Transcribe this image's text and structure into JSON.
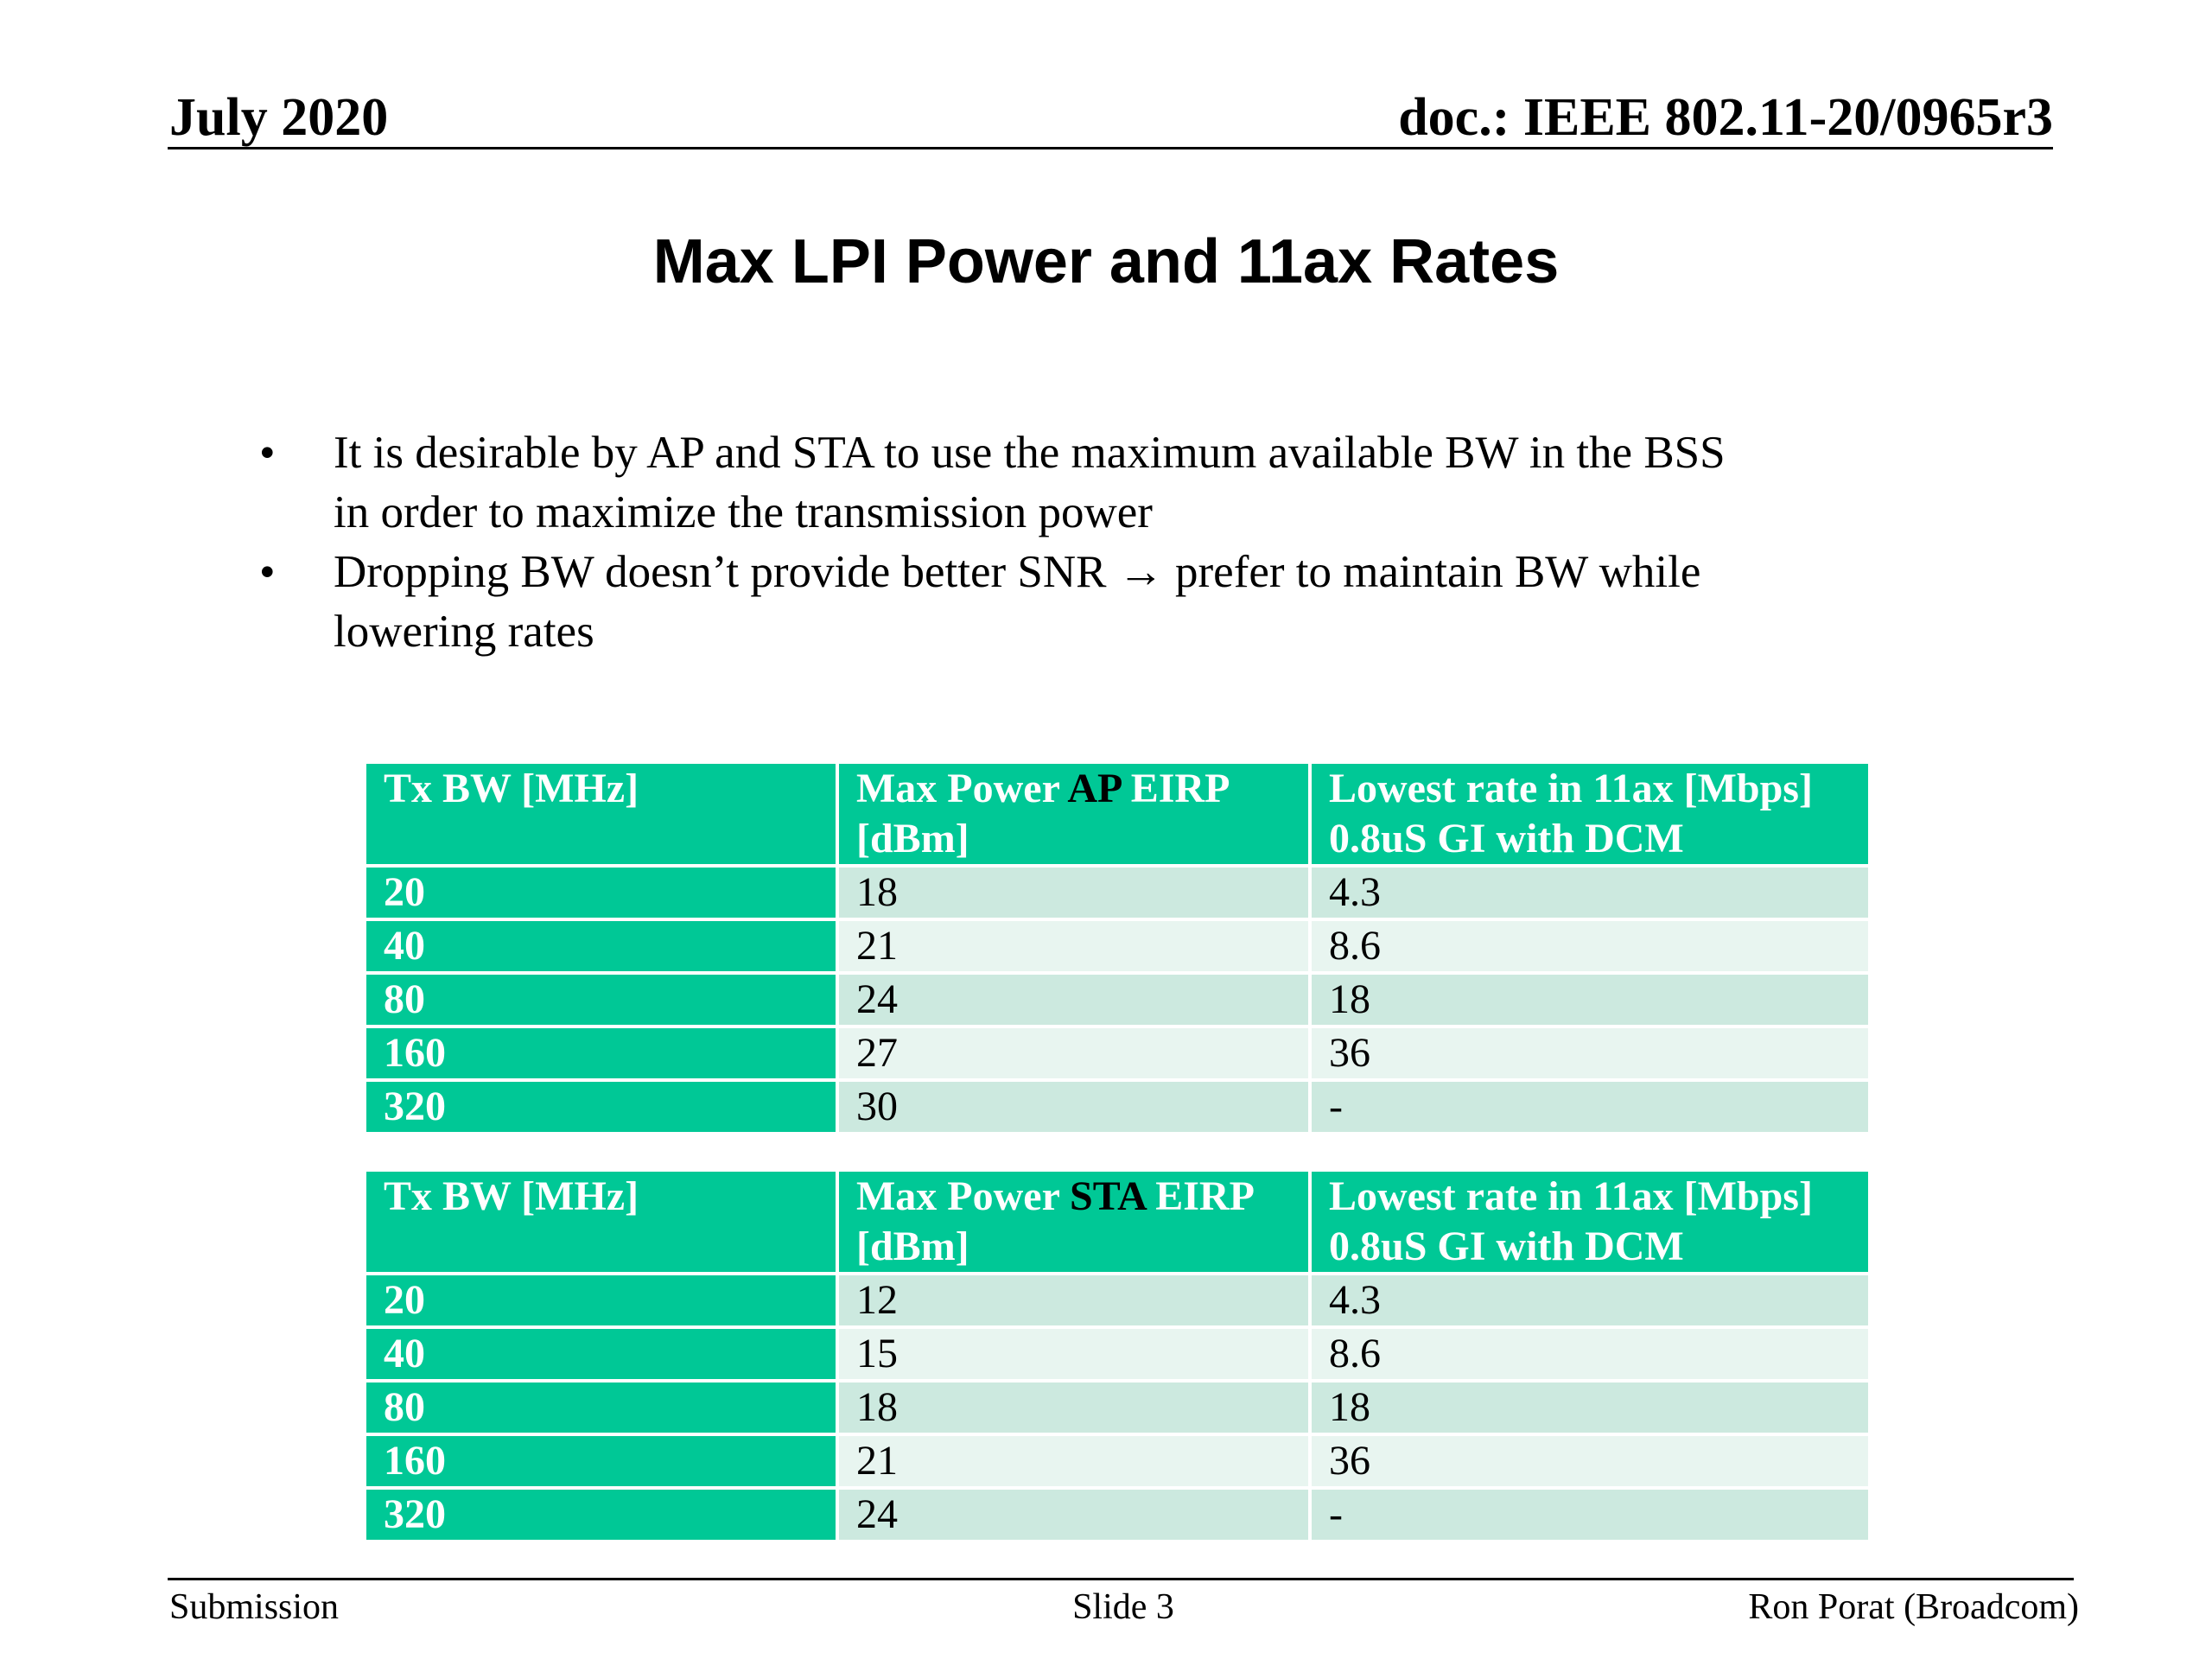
{
  "header": {
    "date": "July 2020",
    "doc_id": "doc.: IEEE 802.11-20/0965r3"
  },
  "slide": {
    "title": "Max LPI Power and 11ax Rates",
    "bullets": [
      {
        "lines": [
          "It is desirable by AP and STA to use the maximum available BW in the BSS",
          "in order to maximize the transmission power"
        ]
      },
      {
        "lines": [
          "Dropping BW doesn’t provide better SNR → prefer to maintain BW while",
          "lowering rates"
        ]
      }
    ],
    "bullet_symbol": "•"
  },
  "tables": [
    {
      "headers": {
        "col1": "Tx BW [MHz]",
        "col2_pre": "Max Power ",
        "col2_highlight": "AP",
        "col2_post": " EIRP",
        "col2_line2": "[dBm]",
        "col3_line1": "Lowest rate in 11ax [Mbps]",
        "col3_line2": "0.8uS GI with DCM"
      },
      "rows": [
        [
          "20",
          "18",
          "4.3"
        ],
        [
          "40",
          "21",
          "8.6"
        ],
        [
          "80",
          "24",
          "18"
        ],
        [
          "160",
          "27",
          "36"
        ],
        [
          "320",
          "30",
          "-"
        ]
      ]
    },
    {
      "headers": {
        "col1": "Tx BW [MHz]",
        "col2_pre": "Max Power ",
        "col2_highlight": "STA",
        "col2_post": " EIRP",
        "col2_line2": "[dBm]",
        "col3_line1": "Lowest rate in 11ax [Mbps]",
        "col3_line2": "0.8uS GI with DCM"
      },
      "rows": [
        [
          "20",
          "12",
          "4.3"
        ],
        [
          "40",
          "15",
          "8.6"
        ],
        [
          "80",
          "18",
          "18"
        ],
        [
          "160",
          "21",
          "36"
        ],
        [
          "320",
          "24",
          "-"
        ]
      ]
    }
  ],
  "footer": {
    "left": "Submission",
    "center": "Slide 3",
    "right": "Ron Porat (Broadcom)"
  },
  "colors": {
    "table_header": "#00c896",
    "row_dark": "#cce9df",
    "row_light": "#e8f5f0"
  }
}
